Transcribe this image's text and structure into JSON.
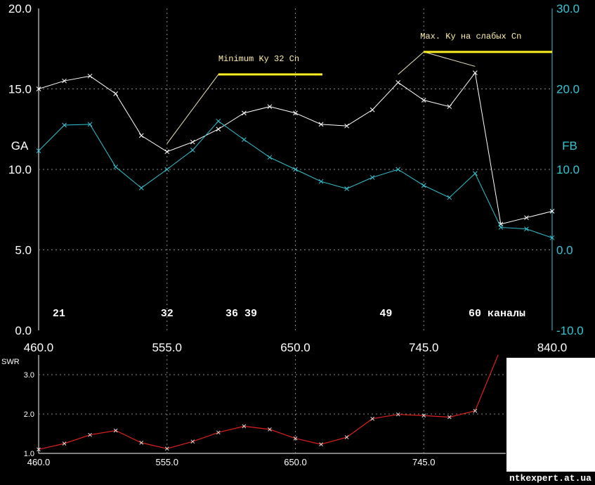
{
  "colors": {
    "background": "#000000",
    "ga": "#ffffff",
    "fb": "#33c6d6",
    "swr": "#e0201a",
    "annotation_text": "#ffeeaa",
    "highlight": "#ffee22",
    "grid": "#8a8a8a",
    "axis_left": "#ffffff",
    "axis_right": "#33c6d6"
  },
  "watermark": "ntkexpert.at.ua",
  "chart_data": [
    {
      "type": "line",
      "title": "",
      "xlabel": "",
      "xlim": [
        460,
        840
      ],
      "x_ticks": [
        "460.0",
        "555.0",
        "650.0",
        "745.0",
        "840.0"
      ],
      "ylabel_left": "GA",
      "ylim_left": [
        0,
        20
      ],
      "y_ticks_left": [
        "0.0",
        "5.0",
        "10.0",
        "15.0",
        "20.0"
      ],
      "ylabel_right": "FB",
      "ylim_right": [
        -10,
        30
      ],
      "y_ticks_right": [
        "-10.0",
        "0.0",
        "10.0",
        "20.0",
        "30.0"
      ],
      "grid": true,
      "x": [
        460,
        479,
        498,
        517,
        536,
        555,
        574,
        593,
        612,
        631,
        650,
        669,
        688,
        707,
        726,
        745,
        764,
        783,
        802,
        821,
        840
      ],
      "series": [
        {
          "name": "GA",
          "axis": "left",
          "values": [
            15.0,
            15.5,
            15.8,
            14.7,
            12.1,
            11.1,
            11.7,
            12.5,
            13.5,
            13.9,
            13.5,
            12.8,
            12.7,
            13.7,
            15.4,
            14.3,
            13.9,
            16.0,
            6.6,
            7.0,
            7.4
          ]
        },
        {
          "name": "FB",
          "axis": "right",
          "values": [
            12.3,
            15.5,
            15.6,
            10.3,
            7.7,
            10.0,
            12.4,
            16.0,
            13.7,
            11.5,
            10.0,
            8.5,
            7.6,
            9.0,
            10.0,
            8.0,
            6.5,
            9.5,
            2.8,
            2.6,
            1.5
          ]
        }
      ],
      "channel_labels": [
        {
          "x": 475,
          "text": "21"
        },
        {
          "x": 555,
          "text": "32"
        },
        {
          "x": 610,
          "text": "36 39"
        },
        {
          "x": 717,
          "text": "49"
        },
        {
          "x": 780,
          "text": "60 каналы"
        }
      ],
      "annotations": [
        {
          "text": "Minimum Ky 32 Cn",
          "line_from": [
            555,
            11.6
          ],
          "line_to": [
            593,
            15.9
          ],
          "bar": [
            593,
            670,
            15.9
          ]
        },
        {
          "text": "Max. Ky на слабых Cn",
          "line_from": [
            726,
            15.9
          ],
          "line_to": [
            745,
            17.3
          ],
          "line2_to": [
            783,
            16.4
          ],
          "bar": [
            745,
            840,
            17.3
          ]
        }
      ]
    },
    {
      "type": "line",
      "title": "",
      "xlabel": "",
      "ylabel": "SWR",
      "xlim": [
        460,
        840
      ],
      "x_ticks": [
        "460.0",
        "555.0",
        "650.0",
        "745.0"
      ],
      "ylim": [
        1.0,
        3.5
      ],
      "y_ticks": [
        "1.0",
        "2.0",
        "3.0"
      ],
      "grid": true,
      "x": [
        460,
        479,
        498,
        517,
        536,
        555,
        574,
        593,
        612,
        631,
        650,
        669,
        688,
        707,
        726,
        745,
        764,
        783,
        800
      ],
      "series": [
        {
          "name": "SWR",
          "values": [
            1.1,
            1.25,
            1.47,
            1.58,
            1.27,
            1.12,
            1.3,
            1.53,
            1.69,
            1.61,
            1.38,
            1.23,
            1.41,
            1.88,
            1.99,
            1.96,
            1.92,
            2.08,
            3.5
          ]
        }
      ]
    }
  ]
}
